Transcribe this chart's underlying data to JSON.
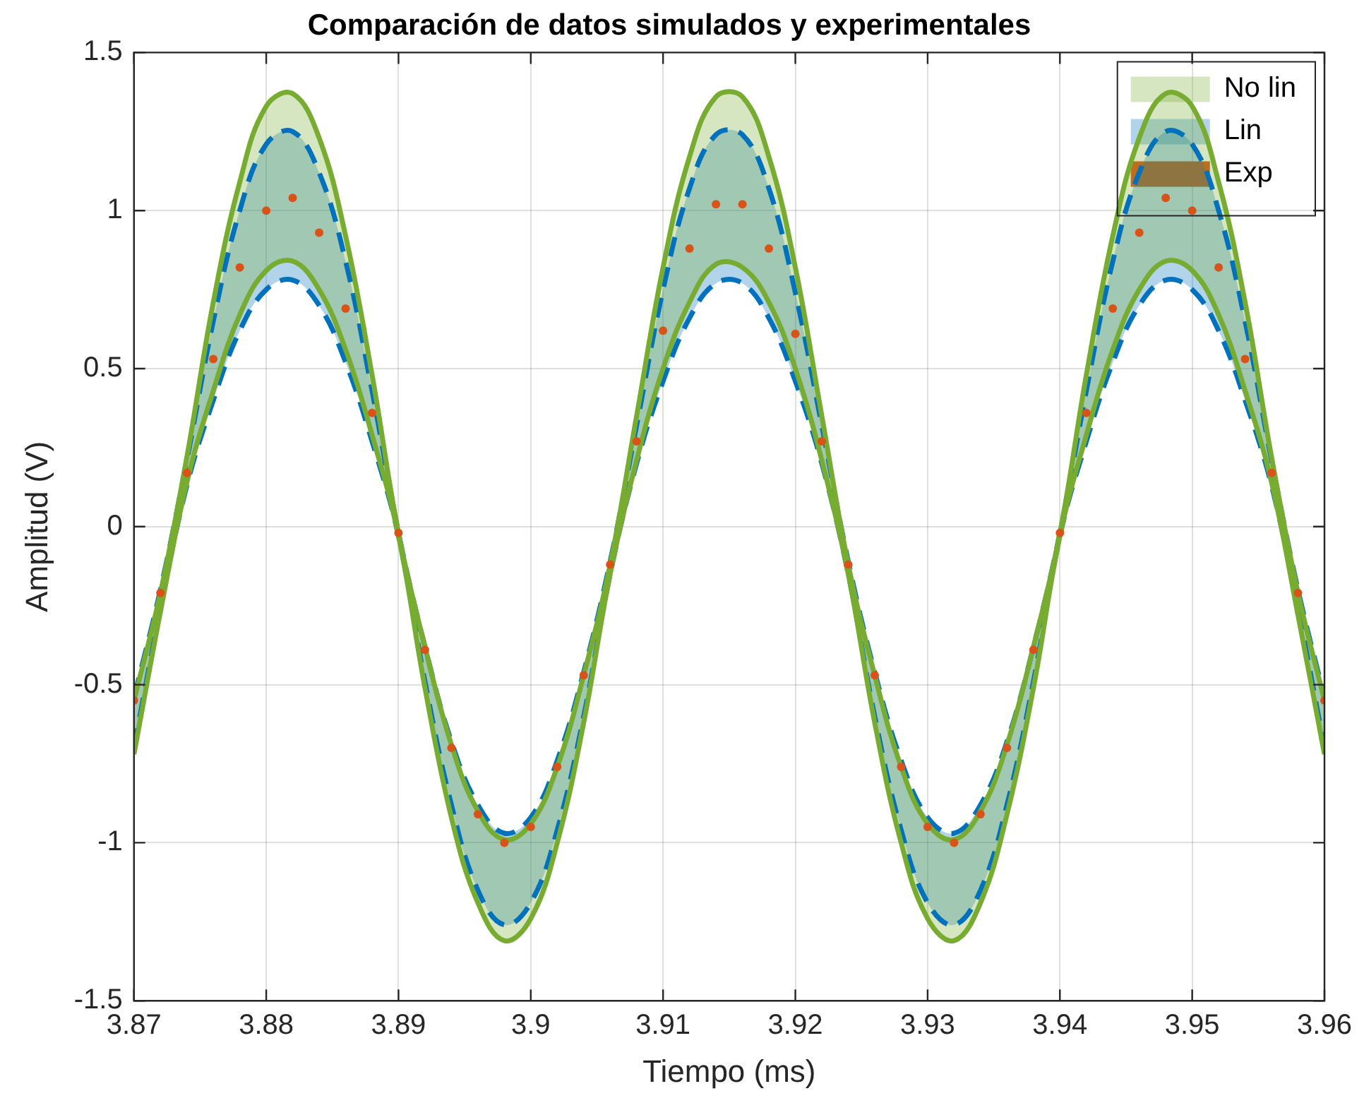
{
  "chart_data": {
    "type": "line",
    "title": "Comparación de datos simulados y experimentales",
    "xlabel": "Tiempo (ms)",
    "ylabel": "Amplitud (V)",
    "x": [
      3.87,
      3.872,
      3.874,
      3.876,
      3.878,
      3.88,
      3.882,
      3.884,
      3.886,
      3.888,
      3.89,
      3.892,
      3.894,
      3.896,
      3.898,
      3.9,
      3.902,
      3.904,
      3.906,
      3.908,
      3.91,
      3.912,
      3.914,
      3.916,
      3.918,
      3.92,
      3.922,
      3.924,
      3.926,
      3.928,
      3.93,
      3.932,
      3.934,
      3.936,
      3.938,
      3.94,
      3.942,
      3.944,
      3.946,
      3.948,
      3.95,
      3.952,
      3.954,
      3.956,
      3.958,
      3.96
    ],
    "series": [
      {
        "name": "No lin",
        "type": "line",
        "color": "#77ac30",
        "line_style": "solid",
        "values": [
          -0.55,
          -0.21,
          0.22,
          0.71,
          1.09,
          1.33,
          1.37,
          1.23,
          0.92,
          0.48,
          -0.02,
          -0.38,
          -0.69,
          -0.9,
          -0.99,
          -0.94,
          -0.76,
          -0.47,
          -0.12,
          0.35,
          0.82,
          1.17,
          1.36,
          1.36,
          1.17,
          0.82,
          0.35,
          -0.12,
          -0.47,
          -0.76,
          -0.94,
          -0.99,
          -0.9,
          -0.69,
          -0.38,
          -0.02,
          0.48,
          0.92,
          1.23,
          1.37,
          1.33,
          1.09,
          0.71,
          0.22,
          -0.21,
          -0.55
        ],
        "upper": [
          -0.55,
          -0.21,
          0.22,
          0.71,
          1.09,
          1.33,
          1.37,
          1.23,
          0.92,
          0.48,
          -0.02,
          -0.38,
          -0.69,
          -0.9,
          -0.99,
          -0.94,
          -0.76,
          -0.47,
          -0.12,
          0.35,
          0.82,
          1.17,
          1.36,
          1.36,
          1.17,
          0.82,
          0.35,
          -0.12,
          -0.47,
          -0.76,
          -0.94,
          -0.99,
          -0.9,
          -0.69,
          -0.38,
          -0.02,
          0.48,
          0.92,
          1.23,
          1.37,
          1.33,
          1.09,
          0.71,
          0.22,
          -0.21,
          -0.55
        ],
        "lower": [
          -0.72,
          -0.27,
          0.14,
          0.43,
          0.67,
          0.81,
          0.84,
          0.75,
          0.56,
          0.29,
          -0.03,
          -0.51,
          -0.92,
          -1.19,
          -1.31,
          -1.24,
          -1.0,
          -0.62,
          -0.15,
          0.21,
          0.5,
          0.71,
          0.83,
          0.82,
          0.71,
          0.5,
          0.21,
          -0.15,
          -0.62,
          -1.0,
          -1.24,
          -1.31,
          -1.19,
          -0.91,
          -0.51,
          -0.03,
          0.29,
          0.56,
          0.75,
          0.84,
          0.81,
          0.67,
          0.43,
          0.14,
          -0.28,
          -0.72
        ]
      },
      {
        "type": "line",
        "color": "#77ac30",
        "line_style": "solid",
        "values": [
          -0.72,
          -0.27,
          0.14,
          0.43,
          0.67,
          0.81,
          0.84,
          0.75,
          0.56,
          0.29,
          -0.03,
          -0.51,
          -0.92,
          -1.19,
          -1.31,
          -1.24,
          -1.0,
          -0.62,
          -0.15,
          0.21,
          0.5,
          0.71,
          0.83,
          0.82,
          0.71,
          0.5,
          0.21,
          -0.15,
          -0.62,
          -1.0,
          -1.24,
          -1.31,
          -1.19,
          -0.91,
          -0.51,
          -0.03,
          0.29,
          0.56,
          0.75,
          0.84,
          0.81,
          0.67,
          0.43,
          0.14,
          -0.28,
          -0.72
        ]
      },
      {
        "name": "Lin",
        "type": "line",
        "color": "#0072bd",
        "line_style": "dashed",
        "values": [
          -0.54,
          -0.2,
          0.21,
          0.65,
          1.0,
          1.21,
          1.25,
          1.12,
          0.84,
          0.43,
          -0.02,
          -0.38,
          -0.68,
          -0.88,
          -0.97,
          -0.92,
          -0.74,
          -0.46,
          -0.11,
          0.32,
          0.75,
          1.07,
          1.24,
          1.24,
          1.07,
          0.74,
          0.32,
          -0.11,
          -0.46,
          -0.74,
          -0.92,
          -0.97,
          -0.88,
          -0.68,
          -0.38,
          -0.02,
          0.43,
          0.84,
          1.12,
          1.25,
          1.21,
          1.0,
          0.65,
          0.21,
          -0.2,
          -0.54
        ],
        "upper": [
          -0.54,
          -0.2,
          0.21,
          0.65,
          1.0,
          1.21,
          1.25,
          1.12,
          0.84,
          0.43,
          -0.02,
          -0.38,
          -0.68,
          -0.88,
          -0.97,
          -0.92,
          -0.74,
          -0.46,
          -0.11,
          0.32,
          0.75,
          1.07,
          1.24,
          1.24,
          1.07,
          0.74,
          0.32,
          -0.11,
          -0.46,
          -0.74,
          -0.92,
          -0.97,
          -0.88,
          -0.68,
          -0.38,
          -0.02,
          0.43,
          0.84,
          1.12,
          1.25,
          1.21,
          1.0,
          0.65,
          0.21,
          -0.2,
          -0.54
        ],
        "lower": [
          -0.7,
          -0.26,
          0.13,
          0.4,
          0.62,
          0.75,
          0.78,
          0.7,
          0.52,
          0.27,
          -0.03,
          -0.49,
          -0.88,
          -1.15,
          -1.26,
          -1.19,
          -0.96,
          -0.6,
          -0.15,
          0.2,
          0.46,
          0.66,
          0.77,
          0.77,
          0.66,
          0.46,
          0.2,
          -0.15,
          -0.6,
          -0.96,
          -1.19,
          -1.26,
          -1.15,
          -0.88,
          -0.49,
          -0.03,
          0.27,
          0.52,
          0.7,
          0.78,
          0.75,
          0.62,
          0.4,
          0.13,
          -0.26,
          -0.7
        ]
      },
      {
        "type": "line",
        "color": "#0072bd",
        "line_style": "dashed",
        "values": [
          -0.7,
          -0.26,
          0.13,
          0.4,
          0.62,
          0.75,
          0.78,
          0.7,
          0.52,
          0.27,
          -0.03,
          -0.49,
          -0.88,
          -1.15,
          -1.26,
          -1.19,
          -0.96,
          -0.6,
          -0.15,
          0.2,
          0.46,
          0.66,
          0.77,
          0.77,
          0.66,
          0.46,
          0.2,
          -0.15,
          -0.6,
          -0.96,
          -1.19,
          -1.26,
          -1.15,
          -0.88,
          -0.49,
          -0.03,
          0.27,
          0.52,
          0.7,
          0.78,
          0.75,
          0.62,
          0.4,
          0.13,
          -0.26,
          -0.7
        ]
      },
      {
        "name": "Exp",
        "type": "scatter",
        "color": "#d95319",
        "marker": "circle",
        "values": [
          -0.55,
          -0.21,
          0.17,
          0.53,
          0.82,
          1.0,
          1.04,
          0.93,
          0.69,
          0.36,
          -0.02,
          -0.39,
          -0.7,
          -0.91,
          -1.0,
          -0.95,
          -0.76,
          -0.47,
          -0.12,
          0.27,
          0.62,
          0.88,
          1.02,
          1.02,
          0.88,
          0.61,
          0.27,
          -0.12,
          -0.47,
          -0.76,
          -0.95,
          -1.0,
          -0.91,
          -0.7,
          -0.39,
          -0.02,
          0.36,
          0.69,
          0.93,
          1.04,
          1.0,
          0.82,
          0.53,
          0.17,
          -0.21,
          -0.55
        ]
      }
    ],
    "xlim": [
      3.87,
      3.96
    ],
    "xticks": [
      3.87,
      3.88,
      3.89,
      3.9,
      3.91,
      3.92,
      3.93,
      3.94,
      3.95,
      3.96
    ],
    "ylim": [
      -1.5,
      1.5
    ],
    "yticks": [
      -1.5,
      -1,
      -0.5,
      0,
      0.5,
      1,
      1.5
    ],
    "grid": true,
    "legend": "top right"
  }
}
